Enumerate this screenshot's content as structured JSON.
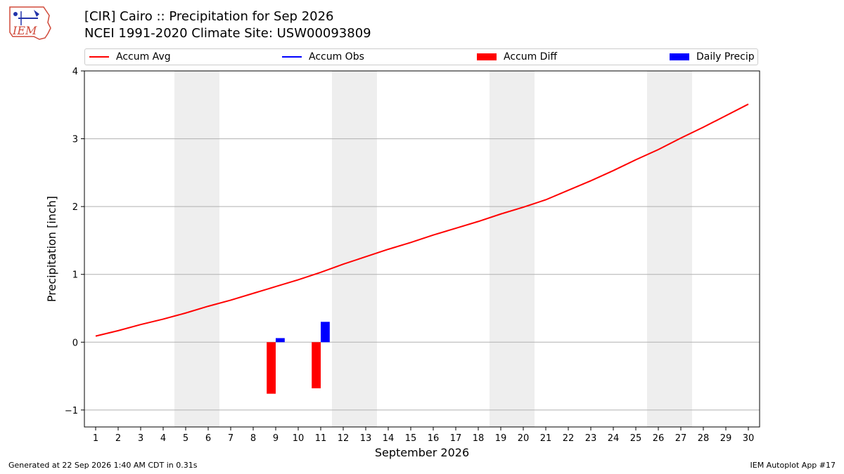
{
  "header": {
    "title_line1": "[CIR] Cairo :: Precipitation for Sep 2026",
    "title_line2": "NCEI 1991-2020 Climate Site: USW00093809",
    "logo_text": "IEM"
  },
  "legend": {
    "items": [
      {
        "label": "Accum Avg",
        "kind": "line",
        "color": "#ff0000"
      },
      {
        "label": "Accum Obs",
        "kind": "line",
        "color": "#0000ff"
      },
      {
        "label": "Accum Diff",
        "kind": "box",
        "color": "#ff0000"
      },
      {
        "label": "Daily Precip",
        "kind": "box",
        "color": "#0000ff"
      }
    ]
  },
  "footer": {
    "left": "Generated at 22 Sep 2026 1:40 AM CDT in 0.31s",
    "right": "IEM Autoplot App #17"
  },
  "chart_data": {
    "type": "bar",
    "xlabel": "September 2026",
    "ylabel": "Precipitation [inch]",
    "ylim": [
      -1.25,
      4
    ],
    "yticks": [
      -1,
      0,
      1,
      2,
      3,
      4
    ],
    "ytick_labels": [
      "−1",
      "0",
      "1",
      "2",
      "3",
      "4"
    ],
    "x": [
      1,
      2,
      3,
      4,
      5,
      6,
      7,
      8,
      9,
      10,
      11,
      12,
      13,
      14,
      15,
      16,
      17,
      18,
      19,
      20,
      21,
      22,
      23,
      24,
      25,
      26,
      27,
      28,
      29,
      30
    ],
    "weekend_days": [
      5,
      6,
      12,
      13,
      19,
      20,
      26,
      27
    ],
    "grid": "horizontal",
    "series": [
      {
        "name": "Accum Avg",
        "kind": "line",
        "color": "#ff0000",
        "values": [
          0.09,
          0.17,
          0.26,
          0.34,
          0.43,
          0.53,
          0.62,
          0.72,
          0.82,
          0.92,
          1.03,
          1.15,
          1.26,
          1.37,
          1.47,
          1.58,
          1.68,
          1.78,
          1.89,
          1.99,
          2.1,
          2.24,
          2.38,
          2.53,
          2.69,
          2.84,
          3.01,
          3.17,
          3.34,
          3.51
        ]
      },
      {
        "name": "Accum Diff",
        "kind": "bar",
        "color": "#ff0000",
        "points": [
          {
            "x": 9,
            "value": -0.76
          },
          {
            "x": 11,
            "value": -0.68
          }
        ]
      },
      {
        "name": "Daily Precip",
        "kind": "bar",
        "color": "#0000ff",
        "points": [
          {
            "x": 9,
            "value": 0.06
          },
          {
            "x": 11,
            "value": 0.3
          }
        ]
      }
    ]
  }
}
